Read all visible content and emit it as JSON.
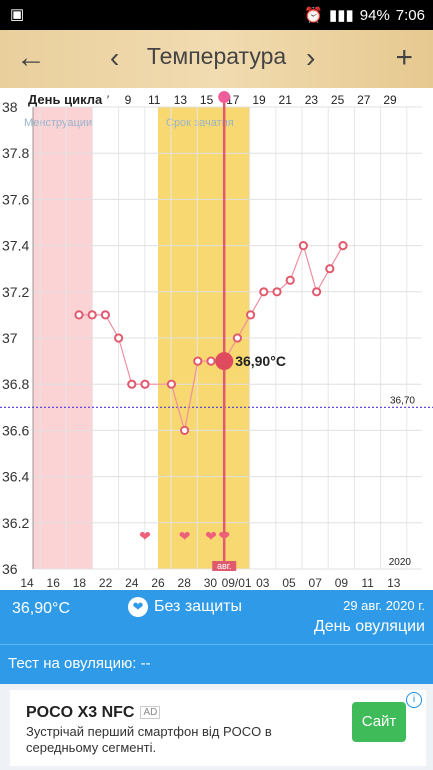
{
  "status": {
    "left_icon": "gallery-icon",
    "battery": "94%",
    "time": "7:06"
  },
  "toolbar": {
    "back": "←",
    "prev": "‹",
    "title": "Температура",
    "next": "›",
    "add": "+"
  },
  "chart_data": {
    "type": "line",
    "title": "",
    "ylim": [
      36,
      38
    ],
    "yticks": [
      "38",
      "37.8",
      "37.6",
      "37.4",
      "37.2",
      "37",
      "36.8",
      "36.6",
      "36.4",
      "36.2",
      "36"
    ],
    "cycle_label": "День цикла",
    "cycle_ticks": [
      "′",
      "9",
      "11",
      "13",
      "15",
      "17",
      "19",
      "21",
      "23",
      "25",
      "27",
      "29"
    ],
    "date_ticks": [
      "14",
      "16",
      "18",
      "22",
      "24",
      "26",
      "28",
      "30",
      "09/01",
      "03",
      "05",
      "07",
      "09",
      "11",
      "13"
    ],
    "month_label": "авг.",
    "year_label": "2020",
    "band_menstruation": "Менструации",
    "band_fertile": "Срок зачатия",
    "coverline": 36.7,
    "coverline_label": "36,70",
    "selected_label": "36,90°C",
    "points": [
      37.1,
      37.1,
      37.1,
      37.0,
      36.8,
      36.8,
      null,
      36.8,
      36.6,
      36.9,
      36.9,
      36.9,
      37.0,
      37.1,
      37.2,
      37.2,
      37.25,
      37.4,
      37.2,
      37.3,
      37.4
    ],
    "heart_days": [
      5,
      8,
      10,
      11
    ]
  },
  "info": {
    "temp": "36,90°C",
    "protection": "Без защиты",
    "date": "29 авг. 2020 г.",
    "status": "День овуляции"
  },
  "test": {
    "label": "Тест на овуляцию: --"
  },
  "ad": {
    "title": "POCO X3 NFC",
    "badge": "AD",
    "body": "Зустрічай перший смартфон від POCO в середньому сегменті.",
    "cta": "Сайт"
  }
}
